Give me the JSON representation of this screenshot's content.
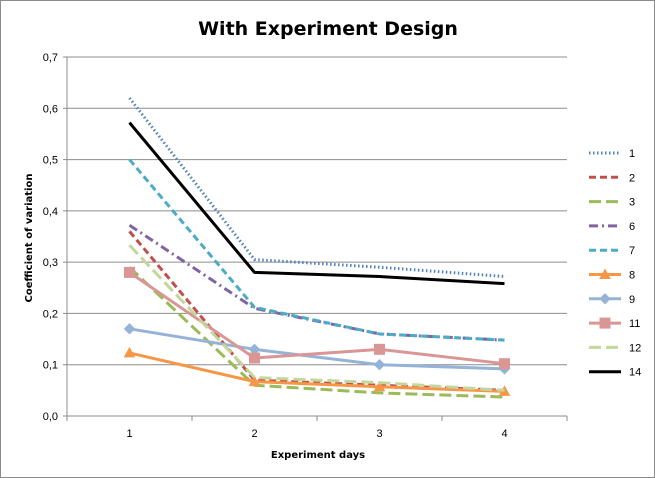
{
  "chart_data": {
    "type": "line",
    "title": "With Experiment Design",
    "xlabel": "Experiment days",
    "ylabel": "Coefficient of variation",
    "categories": [
      "1",
      "2",
      "3",
      "4"
    ],
    "y_ticks": [
      "0,0",
      "0,1",
      "0,2",
      "0,3",
      "0,4",
      "0,5",
      "0,6",
      "0,7"
    ],
    "ylim": [
      0,
      0.7
    ],
    "grid": "horizontal",
    "legend_position": "right",
    "series": [
      {
        "name": "1",
        "values": [
          0.62,
          0.305,
          0.29,
          0.272
        ],
        "color": "#4f81bd",
        "dash": "dotted",
        "marker": "none"
      },
      {
        "name": "2",
        "values": [
          0.36,
          0.07,
          0.06,
          0.05
        ],
        "color": "#c0504d",
        "dash": "dash",
        "marker": "none"
      },
      {
        "name": "3",
        "values": [
          0.29,
          0.06,
          0.045,
          0.037
        ],
        "color": "#9bbb59",
        "dash": "longdash",
        "marker": "none"
      },
      {
        "name": "6",
        "values": [
          0.372,
          0.21,
          0.16,
          0.148
        ],
        "color": "#8064a2",
        "dash": "dashdot",
        "marker": "none"
      },
      {
        "name": "7",
        "values": [
          0.5,
          0.212,
          0.16,
          0.148
        ],
        "color": "#4bacc6",
        "dash": "dash",
        "marker": "none"
      },
      {
        "name": "8",
        "values": [
          0.123,
          0.067,
          0.057,
          0.048
        ],
        "color": "#f79646",
        "dash": "solid",
        "marker": "triangle"
      },
      {
        "name": "9",
        "values": [
          0.17,
          0.13,
          0.1,
          0.092
        ],
        "color": "#95b3d7",
        "dash": "solid",
        "marker": "diamond"
      },
      {
        "name": "11",
        "values": [
          0.28,
          0.113,
          0.13,
          0.102
        ],
        "color": "#d99694",
        "dash": "solid",
        "marker": "square"
      },
      {
        "name": "12",
        "values": [
          0.333,
          0.075,
          0.065,
          0.05
        ],
        "color": "#c3d69b",
        "dash": "longdash",
        "marker": "none"
      },
      {
        "name": "14",
        "values": [
          0.572,
          0.28,
          0.272,
          0.258
        ],
        "color": "#000000",
        "dash": "solid",
        "marker": "none"
      }
    ]
  }
}
